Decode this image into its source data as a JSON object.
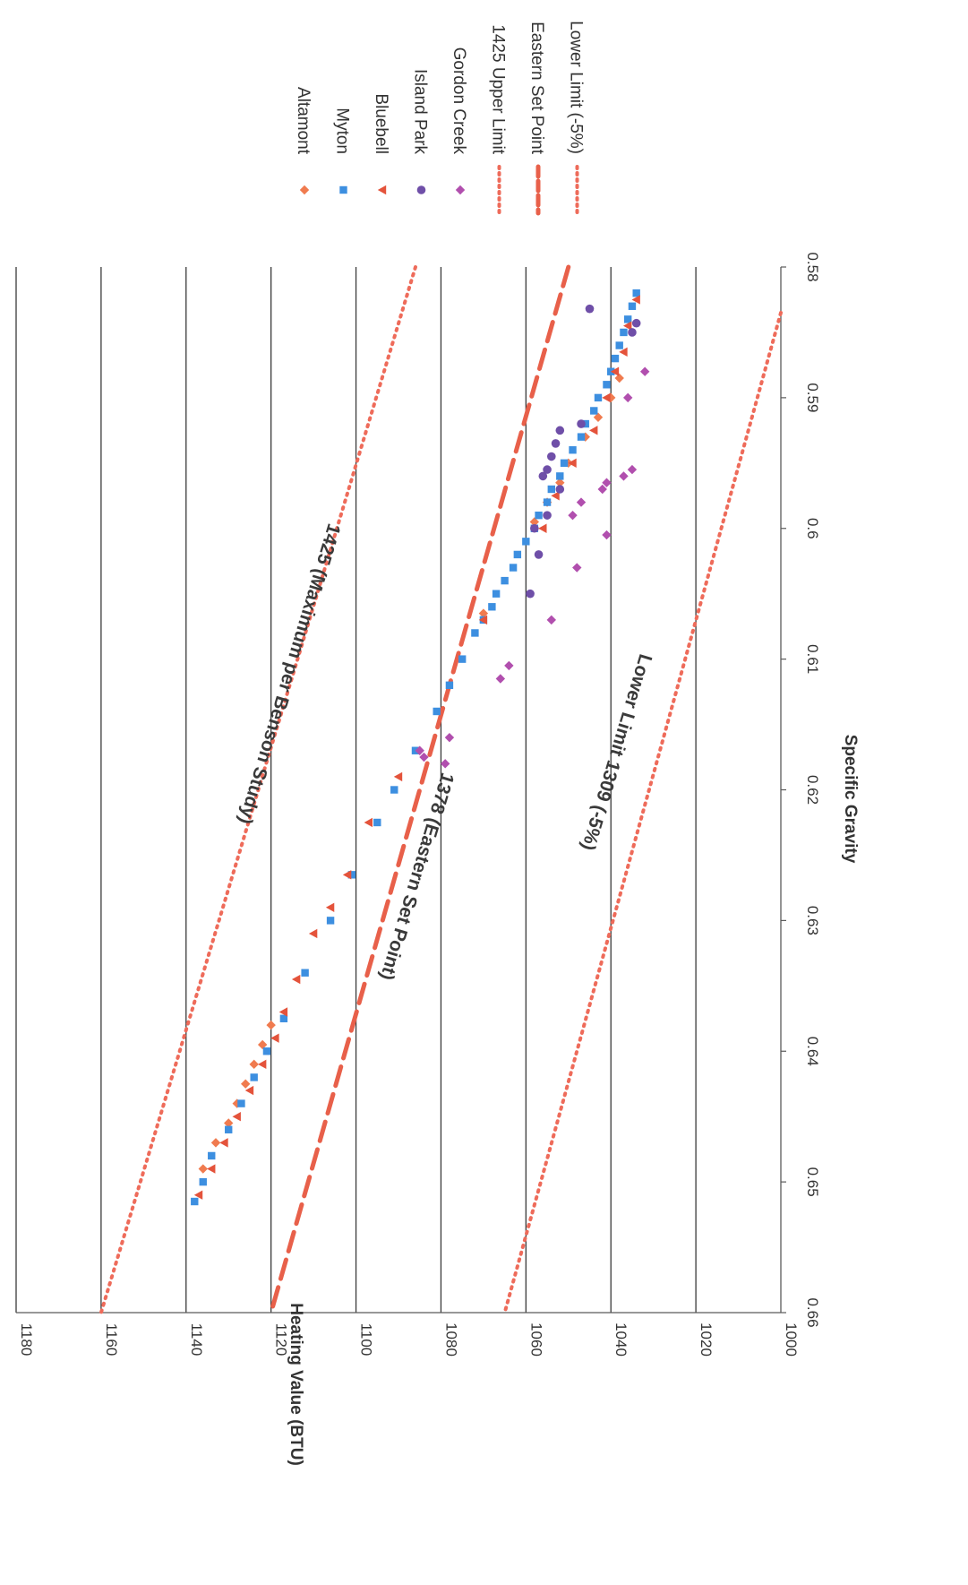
{
  "chart_data": {
    "type": "scatter",
    "title": "",
    "xlabel": "Specific Gravity",
    "ylabel": "Heating Value (BTU)",
    "xlim": [
      0.58,
      0.66
    ],
    "ylim": [
      1000,
      1180
    ],
    "x_ticks": [
      "0.58",
      "0.59",
      "0.6",
      "0.61",
      "0.62",
      "0.63",
      "0.64",
      "0.65",
      "0.66"
    ],
    "y_ticks": [
      "1000",
      "1020",
      "1040",
      "1060",
      "1080",
      "1100",
      "1120",
      "1140",
      "1160",
      "1180"
    ],
    "grid": "horizontal",
    "orientation": "rotated 90° clockwise",
    "legend_position": "right",
    "series": [
      {
        "name": "Altamont",
        "marker": "diamond",
        "color": "#f07b4f",
        "points": [
          [
            0.5885,
            1038
          ],
          [
            0.59,
            1040
          ],
          [
            0.5915,
            1043
          ],
          [
            0.593,
            1046
          ],
          [
            0.595,
            1050
          ],
          [
            0.5965,
            1052
          ],
          [
            0.598,
            1055
          ],
          [
            0.5995,
            1058
          ],
          [
            0.6065,
            1070
          ],
          [
            0.638,
            1120
          ],
          [
            0.6395,
            1122
          ],
          [
            0.641,
            1124
          ],
          [
            0.6425,
            1126
          ],
          [
            0.644,
            1128
          ],
          [
            0.6455,
            1130
          ],
          [
            0.647,
            1133
          ],
          [
            0.649,
            1136
          ]
        ]
      },
      {
        "name": "Myton",
        "marker": "square",
        "color": "#3d8fe0",
        "points": [
          [
            0.582,
            1034
          ],
          [
            0.583,
            1035
          ],
          [
            0.584,
            1036
          ],
          [
            0.585,
            1037
          ],
          [
            0.586,
            1038
          ],
          [
            0.587,
            1039
          ],
          [
            0.588,
            1040
          ],
          [
            0.589,
            1041
          ],
          [
            0.59,
            1043
          ],
          [
            0.591,
            1044
          ],
          [
            0.592,
            1046
          ],
          [
            0.593,
            1047
          ],
          [
            0.594,
            1049
          ],
          [
            0.595,
            1051
          ],
          [
            0.596,
            1052
          ],
          [
            0.597,
            1054
          ],
          [
            0.598,
            1055
          ],
          [
            0.599,
            1057
          ],
          [
            0.6,
            1058
          ],
          [
            0.601,
            1060
          ],
          [
            0.602,
            1062
          ],
          [
            0.603,
            1063
          ],
          [
            0.604,
            1065
          ],
          [
            0.605,
            1067
          ],
          [
            0.606,
            1068
          ],
          [
            0.607,
            1070
          ],
          [
            0.608,
            1072
          ],
          [
            0.61,
            1075
          ],
          [
            0.612,
            1078
          ],
          [
            0.614,
            1081
          ],
          [
            0.617,
            1086
          ],
          [
            0.62,
            1091
          ],
          [
            0.6225,
            1095
          ],
          [
            0.6265,
            1101
          ],
          [
            0.63,
            1106
          ],
          [
            0.634,
            1112
          ],
          [
            0.6375,
            1117
          ],
          [
            0.64,
            1121
          ],
          [
            0.642,
            1124
          ],
          [
            0.644,
            1127
          ],
          [
            0.646,
            1130
          ],
          [
            0.648,
            1134
          ],
          [
            0.65,
            1136
          ],
          [
            0.6515,
            1138
          ]
        ]
      },
      {
        "name": "Bluebell",
        "marker": "triangle",
        "color": "#e4533b",
        "points": [
          [
            0.5825,
            1034
          ],
          [
            0.5845,
            1036
          ],
          [
            0.5865,
            1037
          ],
          [
            0.588,
            1039
          ],
          [
            0.59,
            1041
          ],
          [
            0.5925,
            1044
          ],
          [
            0.595,
            1049
          ],
          [
            0.5975,
            1053
          ],
          [
            0.6,
            1056
          ],
          [
            0.607,
            1070
          ],
          [
            0.619,
            1090
          ],
          [
            0.6225,
            1097
          ],
          [
            0.6265,
            1102
          ],
          [
            0.629,
            1106
          ],
          [
            0.631,
            1110
          ],
          [
            0.6345,
            1114
          ],
          [
            0.637,
            1117
          ],
          [
            0.639,
            1119
          ],
          [
            0.641,
            1122
          ],
          [
            0.643,
            1125
          ],
          [
            0.645,
            1128
          ],
          [
            0.647,
            1131
          ],
          [
            0.649,
            1134
          ],
          [
            0.651,
            1137
          ]
        ]
      },
      {
        "name": "Island Park",
        "marker": "circle",
        "color": "#6f4fa8",
        "points": [
          [
            0.5832,
            1045
          ],
          [
            0.5843,
            1034
          ],
          [
            0.585,
            1035
          ],
          [
            0.592,
            1047
          ],
          [
            0.5925,
            1052
          ],
          [
            0.5935,
            1053
          ],
          [
            0.5945,
            1054
          ],
          [
            0.5955,
            1055
          ],
          [
            0.596,
            1056
          ],
          [
            0.597,
            1052
          ],
          [
            0.599,
            1055
          ],
          [
            0.6,
            1058
          ],
          [
            0.602,
            1057
          ],
          [
            0.605,
            1059
          ]
        ]
      },
      {
        "name": "Gordon Creek",
        "marker": "diamond",
        "color": "#b14fae",
        "points": [
          [
            0.588,
            1032
          ],
          [
            0.59,
            1036
          ],
          [
            0.5955,
            1035
          ],
          [
            0.596,
            1037
          ],
          [
            0.5965,
            1041
          ],
          [
            0.597,
            1042
          ],
          [
            0.598,
            1047
          ],
          [
            0.599,
            1049
          ],
          [
            0.6005,
            1041
          ],
          [
            0.603,
            1048
          ],
          [
            0.607,
            1054
          ],
          [
            0.6105,
            1064
          ],
          [
            0.6115,
            1066
          ],
          [
            0.616,
            1078
          ],
          [
            0.617,
            1085
          ],
          [
            0.618,
            1079
          ],
          [
            0.6175,
            1084
          ]
        ]
      }
    ],
    "lines": [
      {
        "name": "1425 Upper Limit",
        "style": "dotted",
        "color": "#ee6b5a",
        "points": [
          [
            0.58,
            1086
          ],
          [
            0.66,
            1160
          ]
        ]
      },
      {
        "name": "Eastern Set Point",
        "style": "dashed",
        "color": "#e8604a",
        "points": [
          [
            0.58,
            1050
          ],
          [
            0.66,
            1120
          ]
        ]
      },
      {
        "name": "Lower Limit (-5%)",
        "style": "dotted",
        "color": "#ee6b5a",
        "points": [
          [
            0.5835,
            1000
          ],
          [
            0.66,
            1065
          ]
        ]
      }
    ],
    "annotations": [
      {
        "text": "1425 (Maximum per Benson Study)",
        "x": 0.611,
        "y": 1117
      },
      {
        "text": "1378 (Eastern Set Point)",
        "x": 0.6265,
        "y": 1087
      },
      {
        "text": "Lower Limit 1309 (-5%)",
        "x": 0.617,
        "y": 1040
      }
    ]
  }
}
